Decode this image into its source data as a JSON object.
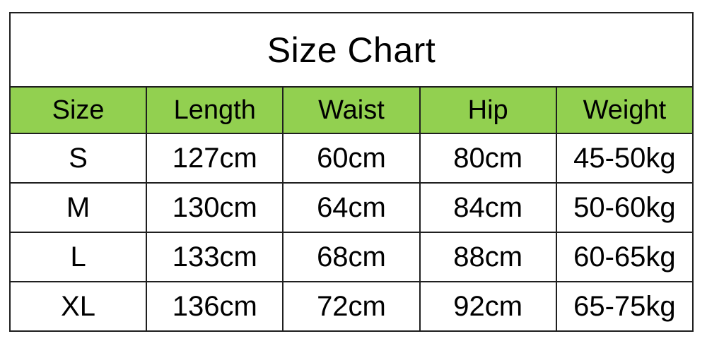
{
  "page": {
    "background_color": "#ffffff",
    "border_color": "#1f1f1f",
    "text_color": "#000000",
    "header_bg_color": "#92d050"
  },
  "chart_data": {
    "type": "table",
    "title": "Size Chart",
    "columns": [
      "Size",
      "Length",
      "Waist",
      "Hip",
      "Weight"
    ],
    "rows": [
      [
        "S",
        "127cm",
        "60cm",
        "80cm",
        "45-50kg"
      ],
      [
        "M",
        "130cm",
        "64cm",
        "84cm",
        "50-60kg"
      ],
      [
        "L",
        "133cm",
        "68cm",
        "88cm",
        "60-65kg"
      ],
      [
        "XL",
        "136cm",
        "72cm",
        "92cm",
        "65-75kg"
      ]
    ],
    "layout": {
      "title_row": true,
      "header_fill": "#92d050",
      "grid": "all-borders"
    }
  }
}
